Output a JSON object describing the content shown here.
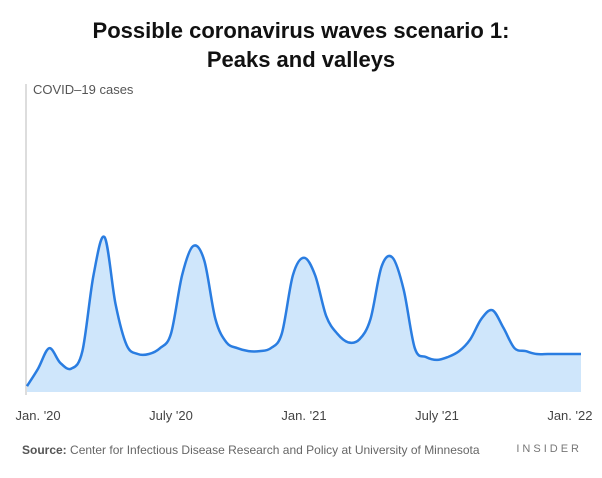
{
  "title": {
    "line1": "Possible coronavirus waves scenario 1:",
    "line2": "Peaks and valleys"
  },
  "footer": {
    "source_label": "Source:",
    "source_text": "Center for Infectious Disease Research and Policy at University of Minnesota",
    "brand": "INSIDER"
  },
  "colors": {
    "line": "#2a7de1",
    "fill": "#cfe6fb",
    "axis": "#bbbbbb"
  },
  "chart_data": {
    "type": "area",
    "title": "Possible coronavirus waves scenario 1: Peaks and valleys",
    "ylabel": "COVID–19 cases",
    "xlabel": "",
    "y_units": "relative (no numeric scale shown)",
    "ylim": [
      0,
      100
    ],
    "xlim": [
      0,
      25
    ],
    "x_ticks": [
      {
        "label": "Jan. '20",
        "x": 0.5
      },
      {
        "label": "July '20",
        "x": 6.5
      },
      {
        "label": "Jan. '21",
        "x": 12.5
      },
      {
        "label": "July '21",
        "x": 18.5
      },
      {
        "label": "Jan. '22",
        "x": 24.5
      }
    ],
    "x": [
      0,
      0.5,
      1.0,
      1.5,
      2.0,
      2.5,
      3.0,
      3.5,
      4.0,
      4.5,
      5.0,
      5.5,
      6.0,
      6.5,
      7.0,
      7.5,
      8.0,
      8.5,
      9.0,
      9.5,
      10.0,
      10.5,
      11.0,
      11.5,
      12.0,
      12.5,
      13.0,
      13.5,
      14.0,
      14.5,
      15.0,
      15.5,
      16.0,
      16.5,
      17.0,
      17.5,
      18.0,
      18.5,
      19.0,
      19.5,
      20.0,
      20.5,
      21.0,
      21.5,
      22.0,
      22.5,
      23.0,
      23.5,
      24.0,
      24.5,
      25.0
    ],
    "series": [
      {
        "name": "COVID–19 cases",
        "values": [
          2,
          8,
          15,
          10,
          8,
          14,
          40,
          53,
          30,
          16,
          13,
          13,
          15,
          20,
          40,
          50,
          45,
          25,
          17,
          15,
          14,
          14,
          15,
          20,
          40,
          46,
          40,
          26,
          20,
          17,
          18,
          25,
          43,
          46,
          35,
          15,
          12,
          11,
          12,
          14,
          18,
          25,
          28,
          22,
          15,
          14,
          13,
          13,
          13,
          13,
          13
        ]
      }
    ]
  }
}
